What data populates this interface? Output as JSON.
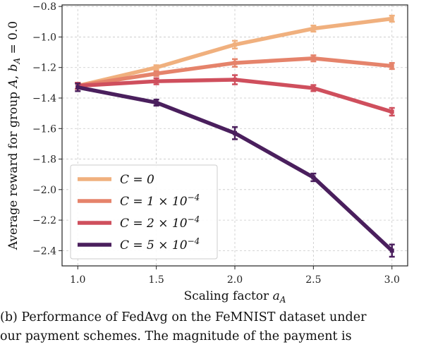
{
  "chart_data": {
    "type": "line",
    "xlabel": "Scaling factor a_A",
    "ylabel": "Average reward for group A, b_A = 0.0",
    "x": [
      1.0,
      1.5,
      2.0,
      2.5,
      3.0
    ],
    "xticks": [
      "1.0",
      "1.5",
      "2.0",
      "2.5",
      "3.0"
    ],
    "yticks": [
      "−0.8",
      "−1.0",
      "−1.2",
      "−1.4",
      "−1.6",
      "−1.8",
      "−2.0",
      "−2.2",
      "−2.4"
    ],
    "ytick_values": [
      -0.8,
      -1.0,
      -1.2,
      -1.4,
      -1.6,
      -1.8,
      -2.0,
      -2.2,
      -2.4
    ],
    "xlim": [
      0.9,
      3.1
    ],
    "ylim": [
      -2.5,
      -0.79
    ],
    "grid": true,
    "legend_position": "lower-left",
    "series": [
      {
        "name": "C = 0",
        "color": "#f0b07e",
        "values": [
          -1.32,
          -1.2,
          -1.05,
          -0.945,
          -0.88
        ],
        "err": [
          0.02,
          0.015,
          0.025,
          0.02,
          0.02
        ]
      },
      {
        "name": "C = 1 × 10^−4",
        "color": "#e5836b",
        "values": [
          -1.32,
          -1.24,
          -1.17,
          -1.14,
          -1.19
        ],
        "err": [
          0.02,
          0.015,
          0.025,
          0.02,
          0.02
        ]
      },
      {
        "name": "C = 2 × 10^−4",
        "color": "#cf4f5d",
        "values": [
          -1.32,
          -1.29,
          -1.28,
          -1.335,
          -1.49
        ],
        "err": [
          0.02,
          0.02,
          0.03,
          0.02,
          0.025
        ]
      },
      {
        "name": "C = 5 × 10^−4",
        "color": "#4a1f5d",
        "values": [
          -1.33,
          -1.43,
          -1.63,
          -1.92,
          -2.4
        ],
        "err": [
          0.025,
          0.02,
          0.04,
          0.025,
          0.04
        ]
      }
    ]
  },
  "caption": {
    "line1": "(b) Performance of FedAvg on the FeMNIST dataset under",
    "line2": "our payment schemes.  The magnitude of the payment is"
  }
}
